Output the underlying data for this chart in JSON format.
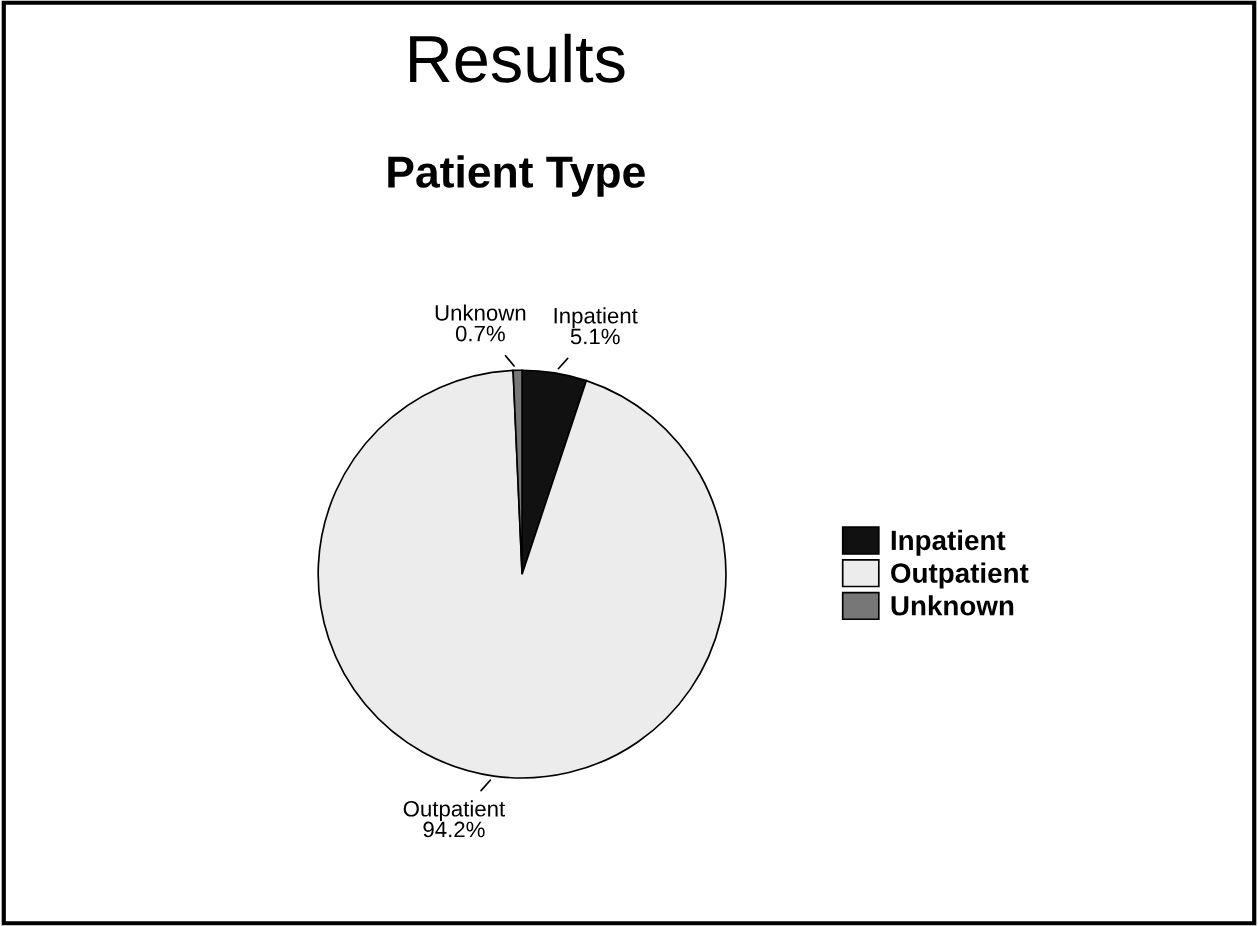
{
  "chart_data": {
    "type": "pie",
    "title": "Results",
    "subtitle": "Patient Type",
    "categories": [
      "Inpatient",
      "Outpatient",
      "Unknown"
    ],
    "values": [
      5.1,
      94.2,
      0.7
    ],
    "value_labels": [
      "5.1%",
      "94.2%",
      "0.7%"
    ],
    "colors": [
      "#111111",
      "#ececec",
      "#777777"
    ],
    "legend": "right"
  }
}
